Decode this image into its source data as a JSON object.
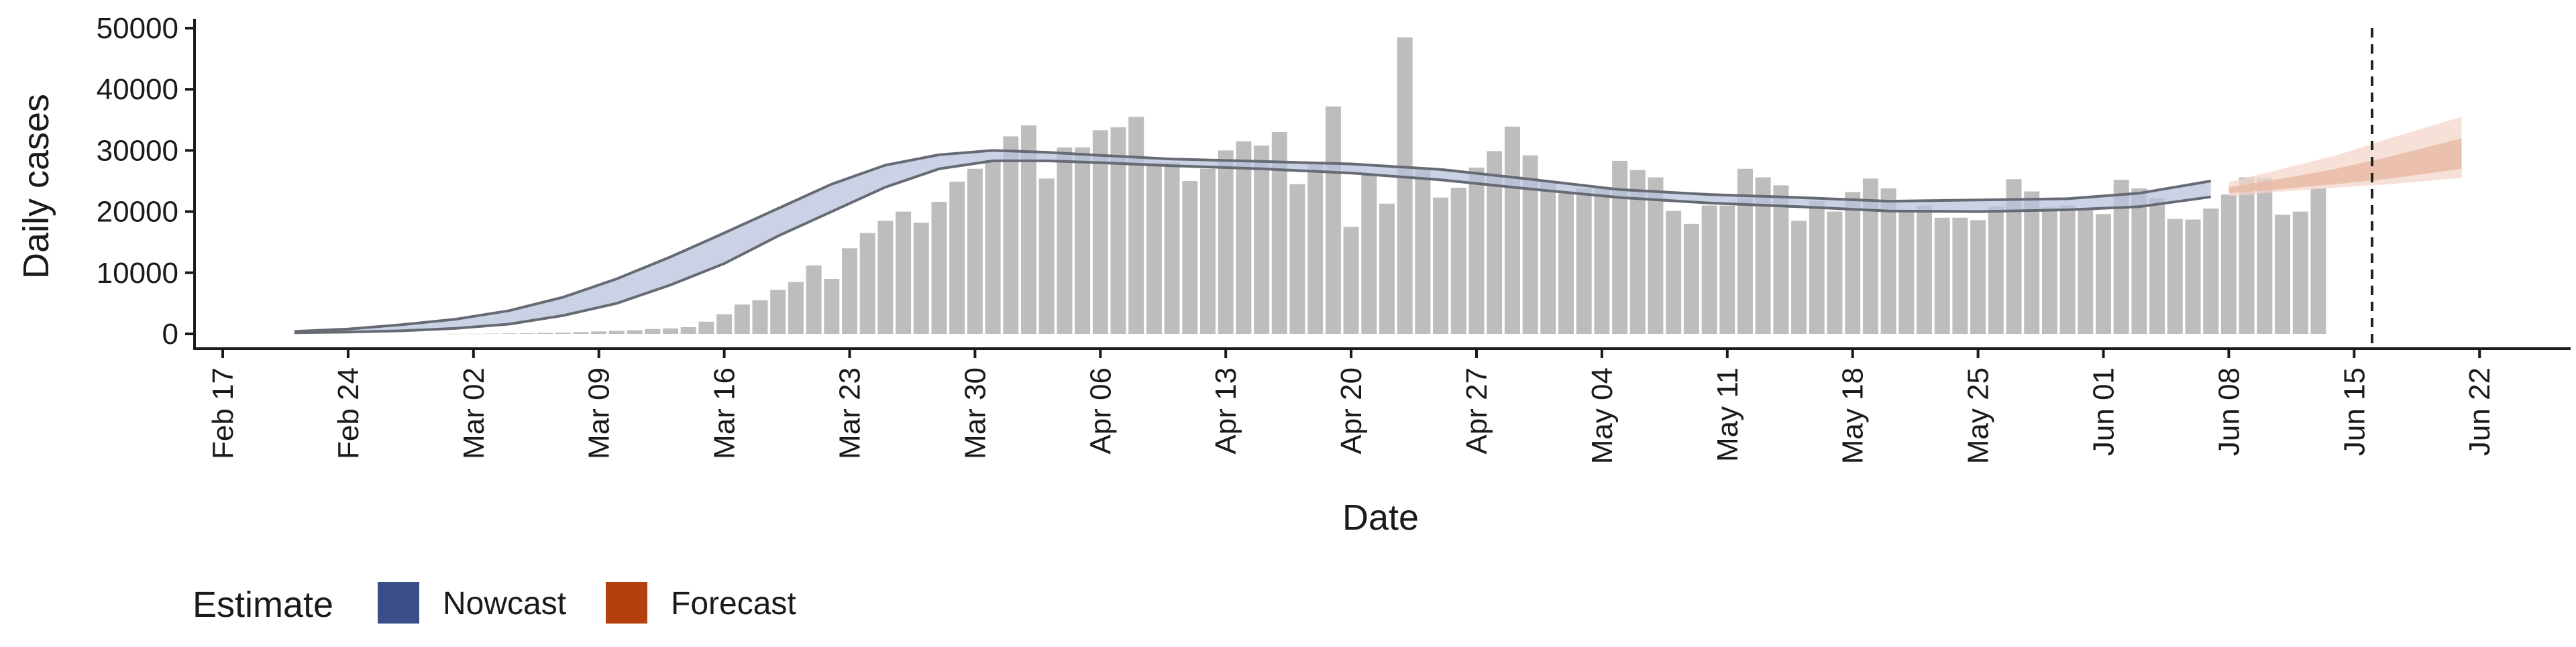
{
  "chart_data": {
    "type": "bar",
    "xlabel": "Date",
    "ylabel": "Daily cases",
    "ylim": [
      0,
      50000
    ],
    "y_ticks": [
      0,
      10000,
      20000,
      30000,
      40000,
      50000
    ],
    "y_tick_labels": [
      "0",
      "10000",
      "20000",
      "30000",
      "40000",
      "50000"
    ],
    "x_range": [
      "2020-02-14",
      "2020-06-26"
    ],
    "x_ticks": [
      "2020-02-17",
      "2020-02-24",
      "2020-03-02",
      "2020-03-09",
      "2020-03-16",
      "2020-03-23",
      "2020-03-30",
      "2020-04-06",
      "2020-04-13",
      "2020-04-20",
      "2020-04-27",
      "2020-05-04",
      "2020-05-11",
      "2020-05-18",
      "2020-05-25",
      "2020-06-01",
      "2020-06-08",
      "2020-06-15",
      "2020-06-22"
    ],
    "x_tick_labels": [
      "Feb 17",
      "Feb 24",
      "Mar 02",
      "Mar 09",
      "Mar 16",
      "Mar 23",
      "Mar 30",
      "Apr 06",
      "Apr 13",
      "Apr 20",
      "Apr 27",
      "May 04",
      "May 11",
      "May 18",
      "May 25",
      "Jun 01",
      "Jun 08",
      "Jun 15",
      "Jun 22"
    ],
    "bars": {
      "start_date": "2020-03-01",
      "values": [
        20,
        20,
        50,
        80,
        100,
        150,
        200,
        300,
        400,
        500,
        600,
        800,
        900,
        1100,
        2000,
        3200,
        4800,
        5500,
        7200,
        8500,
        11200,
        9000,
        14000,
        16500,
        18500,
        20000,
        18200,
        21600,
        24900,
        27000,
        28500,
        32300,
        34100,
        25400,
        30500,
        30500,
        33300,
        33800,
        35500,
        28000,
        28000,
        25000,
        27000,
        30000,
        31500,
        30800,
        33000,
        24500,
        28000,
        37200,
        17500,
        26200,
        21300,
        48500,
        26800,
        22300,
        23900,
        27200,
        29900,
        33900,
        29200,
        25000,
        23000,
        23800,
        24000,
        28300,
        26800,
        25600,
        20100,
        18000,
        21000,
        21000,
        27000,
        25600,
        24300,
        18500,
        21700,
        20000,
        23200,
        25400,
        23800,
        20000,
        21000,
        19000,
        19000,
        18600,
        20800,
        25300,
        23300,
        20700,
        21000,
        20600,
        19600,
        25200,
        23800,
        22200,
        18800,
        18700,
        20500,
        22800,
        25600,
        25500,
        19500,
        20000,
        23800
      ]
    },
    "series": [
      {
        "name": "Nowcast",
        "color": "#3a4f8a",
        "dates": [
          "2020-02-21",
          "2020-02-24",
          "2020-02-27",
          "2020-03-01",
          "2020-03-04",
          "2020-03-07",
          "2020-03-10",
          "2020-03-13",
          "2020-03-16",
          "2020-03-19",
          "2020-03-22",
          "2020-03-25",
          "2020-03-28",
          "2020-03-31",
          "2020-04-03",
          "2020-04-06",
          "2020-04-10",
          "2020-04-15",
          "2020-04-20",
          "2020-04-25",
          "2020-04-30",
          "2020-05-05",
          "2020-05-10",
          "2020-05-15",
          "2020-05-20",
          "2020-05-25",
          "2020-05-30",
          "2020-06-03",
          "2020-06-07"
        ],
        "upper": [
          400,
          800,
          1500,
          2400,
          3800,
          6000,
          9000,
          12600,
          16500,
          20500,
          24500,
          27600,
          29300,
          30000,
          29700,
          29200,
          28600,
          28200,
          27800,
          26900,
          25300,
          23600,
          22800,
          22300,
          21700,
          21900,
          22100,
          23000,
          25000
        ],
        "lower": [
          200,
          300,
          500,
          900,
          1600,
          3000,
          5000,
          8000,
          11500,
          16000,
          20000,
          24000,
          27000,
          28300,
          28300,
          28000,
          27500,
          27000,
          26300,
          25200,
          23700,
          22300,
          21400,
          20800,
          20100,
          20000,
          20300,
          20800,
          22400
        ]
      },
      {
        "name": "Forecast",
        "color": "#b5400f",
        "dates": [
          "2020-06-08",
          "2020-06-11",
          "2020-06-14",
          "2020-06-17",
          "2020-06-21"
        ],
        "upper": [
          24800,
          27000,
          29200,
          32000,
          35500
        ],
        "lower": [
          22500,
          23300,
          23900,
          24500,
          25500
        ],
        "inner_upper": [
          24000,
          25400,
          27000,
          29000,
          32000
        ],
        "inner_lower": [
          23000,
          23700,
          24500,
          25400,
          27000
        ]
      }
    ],
    "vline_date": "2020-06-16",
    "legend": {
      "title": "Estimate",
      "position": "bottom-left",
      "items": [
        {
          "label": "Nowcast",
          "color": "#3a4f8a"
        },
        {
          "label": "Forecast",
          "color": "#b5400f"
        }
      ]
    },
    "grid": false
  }
}
